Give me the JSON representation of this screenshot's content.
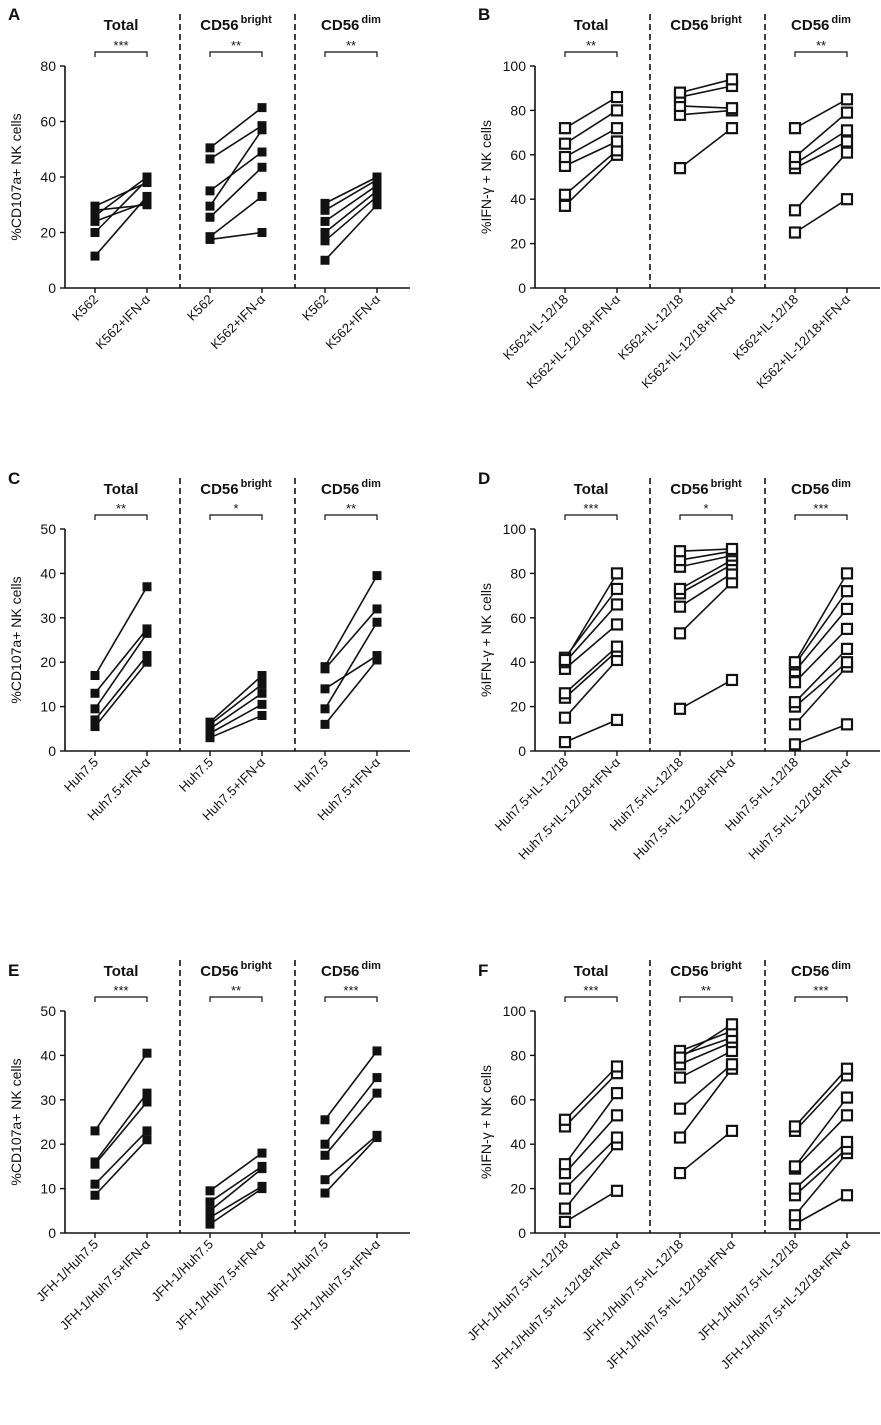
{
  "chart_data": [
    {
      "panel_letter": "A",
      "type": "line",
      "marker": "filled-square",
      "ylabel": "%CD107a+ NK cells",
      "ylim": [
        0,
        80
      ],
      "yticks": [
        "0",
        "20",
        "40",
        "60",
        "80"
      ],
      "groups": [
        {
          "title": "Total",
          "superscript": "",
          "sig": "***",
          "categories": [
            "K562",
            "K562+IFN-α"
          ],
          "pairs": [
            [
              11.5,
              33
            ],
            [
              20,
              39
            ],
            [
              24,
              31
            ],
            [
              26,
              40
            ],
            [
              28,
              30
            ],
            [
              29.5,
              38
            ]
          ]
        },
        {
          "title": "CD56",
          "superscript": "bright",
          "sig": "**",
          "categories": [
            "K562",
            "K562+IFN-α"
          ],
          "pairs": [
            [
              17.5,
              20
            ],
            [
              18.5,
              33
            ],
            [
              25.5,
              43.5
            ],
            [
              29.5,
              57
            ],
            [
              35,
              49
            ],
            [
              46.5,
              58.5
            ],
            [
              50.5,
              65
            ]
          ]
        },
        {
          "title": "CD56",
          "superscript": "dim",
          "sig": "**",
          "categories": [
            "K562",
            "K562+IFN-α"
          ],
          "pairs": [
            [
              10,
              30
            ],
            [
              17,
              33
            ],
            [
              20,
              35
            ],
            [
              24,
              37
            ],
            [
              28,
              39
            ],
            [
              30.5,
              40
            ]
          ]
        }
      ]
    },
    {
      "panel_letter": "B",
      "type": "line",
      "marker": "open-square",
      "ylabel": "%IFN-γ + NK cells",
      "ylim": [
        0,
        100
      ],
      "yticks": [
        "0",
        "20",
        "40",
        "60",
        "80",
        "100"
      ],
      "groups": [
        {
          "title": "Total",
          "superscript": "",
          "sig": "**",
          "categories": [
            "K562+IL-12/18",
            "K562+IL-12/18+IFN-α"
          ],
          "pairs": [
            [
              37,
              60
            ],
            [
              42,
              62
            ],
            [
              55,
              66
            ],
            [
              59,
              72
            ],
            [
              65,
              80
            ],
            [
              72,
              86
            ]
          ]
        },
        {
          "title": "CD56",
          "superscript": "bright",
          "sig": "",
          "categories": [
            "K562+IL-12/18",
            "K562+IL-12/18+IFN-α"
          ],
          "pairs": [
            [
              54,
              72
            ],
            [
              78,
              80
            ],
            [
              82,
              81
            ],
            [
              86,
              91
            ],
            [
              88,
              94
            ]
          ]
        },
        {
          "title": "CD56",
          "superscript": "dim",
          "sig": "**",
          "categories": [
            "K562+IL-12/18",
            "K562+IL-12/18+IFN-α"
          ],
          "pairs": [
            [
              25,
              40
            ],
            [
              35,
              61
            ],
            [
              54,
              66
            ],
            [
              56,
              71
            ],
            [
              59,
              79
            ],
            [
              72,
              85
            ]
          ]
        }
      ]
    },
    {
      "panel_letter": "C",
      "type": "line",
      "marker": "filled-square",
      "ylabel": "%CD107a+ NK cells",
      "ylim": [
        0,
        50
      ],
      "yticks": [
        "0",
        "10",
        "20",
        "30",
        "40",
        "50"
      ],
      "groups": [
        {
          "title": "Total",
          "superscript": "",
          "sig": "**",
          "categories": [
            "Huh7.5",
            "Huh7.5+IFN-α"
          ],
          "pairs": [
            [
              5.5,
              20
            ],
            [
              7,
              21.5
            ],
            [
              9.5,
              26.5
            ],
            [
              13,
              27.5
            ],
            [
              17,
              37
            ]
          ]
        },
        {
          "title": "CD56",
          "superscript": "bright",
          "sig": "*",
          "categories": [
            "Huh7.5",
            "Huh7.5+IFN-α"
          ],
          "pairs": [
            [
              3,
              8
            ],
            [
              4,
              10.5
            ],
            [
              5,
              13
            ],
            [
              6,
              15
            ],
            [
              6.5,
              17
            ]
          ]
        },
        {
          "title": "CD56",
          "superscript": "dim",
          "sig": "**",
          "categories": [
            "Huh7.5",
            "Huh7.5+IFN-α"
          ],
          "pairs": [
            [
              6,
              20.5
            ],
            [
              9.5,
              29
            ],
            [
              14,
              21.5
            ],
            [
              18.5,
              32
            ],
            [
              19,
              39.5
            ]
          ]
        }
      ]
    },
    {
      "panel_letter": "D",
      "type": "line",
      "marker": "open-square",
      "ylabel": "%IFN-γ + NK cells",
      "ylim": [
        0,
        100
      ],
      "yticks": [
        "0",
        "20",
        "40",
        "60",
        "80",
        "100"
      ],
      "groups": [
        {
          "title": "Total",
          "superscript": "",
          "sig": "***",
          "categories": [
            "Huh7.5+IL-12/18",
            "Huh7.5+IL-12/18+IFN-α"
          ],
          "pairs": [
            [
              4,
              14
            ],
            [
              15,
              41
            ],
            [
              24,
              45
            ],
            [
              26,
              47
            ],
            [
              37,
              57
            ],
            [
              40,
              66
            ],
            [
              42,
              73
            ],
            [
              41,
              80
            ]
          ]
        },
        {
          "title": "CD56",
          "superscript": "bright",
          "sig": "*",
          "categories": [
            "Huh7.5+IL-12/18",
            "Huh7.5+IL-12/18+IFN-α"
          ],
          "pairs": [
            [
              19,
              32
            ],
            [
              53,
              76
            ],
            [
              65,
              80
            ],
            [
              71,
              84
            ],
            [
              73,
              86
            ],
            [
              83,
              88
            ],
            [
              86,
              90
            ],
            [
              90,
              91
            ]
          ]
        },
        {
          "title": "CD56",
          "superscript": "dim",
          "sig": "***",
          "categories": [
            "Huh7.5+IL-12/18",
            "Huh7.5+IL-12/18+IFN-α"
          ],
          "pairs": [
            [
              3,
              12
            ],
            [
              12,
              38
            ],
            [
              20,
              40
            ],
            [
              22,
              46
            ],
            [
              31,
              55
            ],
            [
              36,
              64
            ],
            [
              39,
              72
            ],
            [
              40,
              80
            ]
          ]
        }
      ]
    },
    {
      "panel_letter": "E",
      "type": "line",
      "marker": "filled-square",
      "ylabel": "%CD107a+ NK cells",
      "ylim": [
        0,
        50
      ],
      "yticks": [
        "0",
        "10",
        "20",
        "30",
        "40",
        "50"
      ],
      "groups": [
        {
          "title": "Total",
          "superscript": "",
          "sig": "***",
          "categories": [
            "JFH-1/Huh7.5",
            "JFH-1/Huh7.5+IFN-α"
          ],
          "pairs": [
            [
              8.5,
              21
            ],
            [
              11,
              23
            ],
            [
              15.5,
              29.5
            ],
            [
              16,
              31.5
            ],
            [
              23,
              40.5
            ]
          ]
        },
        {
          "title": "CD56",
          "superscript": "bright",
          "sig": "**",
          "categories": [
            "JFH-1/Huh7.5",
            "JFH-1/Huh7.5+IFN-α"
          ],
          "pairs": [
            [
              2,
              10
            ],
            [
              3.5,
              10.5
            ],
            [
              5,
              14.5
            ],
            [
              7,
              15
            ],
            [
              9.5,
              18
            ]
          ]
        },
        {
          "title": "CD56",
          "superscript": "dim",
          "sig": "***",
          "categories": [
            "JFH-1/Huh7.5",
            "JFH-1/Huh7.5+IFN-α"
          ],
          "pairs": [
            [
              9,
              21.5
            ],
            [
              12,
              22
            ],
            [
              17.5,
              31.5
            ],
            [
              20,
              35
            ],
            [
              25.5,
              41
            ]
          ]
        }
      ]
    },
    {
      "panel_letter": "F",
      "type": "line",
      "marker": "open-square",
      "ylabel": "%IFN-γ + NK cells",
      "ylim": [
        0,
        100
      ],
      "yticks": [
        "0",
        "20",
        "40",
        "60",
        "80",
        "100"
      ],
      "groups": [
        {
          "title": "Total",
          "superscript": "",
          "sig": "***",
          "categories": [
            "JFH-1/Huh7.5+IL-12/18",
            "JFH-1/Huh7.5+IL-12/18+IFN-α"
          ],
          "pairs": [
            [
              5,
              19
            ],
            [
              11,
              40
            ],
            [
              20,
              43
            ],
            [
              27,
              53
            ],
            [
              31,
              63
            ],
            [
              48,
              72
            ],
            [
              51,
              75
            ]
          ]
        },
        {
          "title": "CD56",
          "superscript": "bright",
          "sig": "**",
          "categories": [
            "JFH-1/Huh7.5+IL-12/18",
            "JFH-1/Huh7.5+IL-12/18+IFN-α"
          ],
          "pairs": [
            [
              27,
              46
            ],
            [
              43,
              74
            ],
            [
              56,
              76
            ],
            [
              70,
              82
            ],
            [
              76,
              86
            ],
            [
              80,
              88
            ],
            [
              82,
              91
            ],
            [
              79,
              94
            ]
          ]
        },
        {
          "title": "CD56",
          "superscript": "dim",
          "sig": "***",
          "categories": [
            "JFH-1/Huh7.5+IL-12/18",
            "JFH-1/Huh7.5+IL-12/18+IFN-α"
          ],
          "pairs": [
            [
              4,
              17
            ],
            [
              8,
              36
            ],
            [
              17,
              38
            ],
            [
              20,
              41
            ],
            [
              29,
              53
            ],
            [
              30,
              61
            ],
            [
              46,
              71
            ],
            [
              48,
              74
            ]
          ]
        }
      ]
    }
  ]
}
